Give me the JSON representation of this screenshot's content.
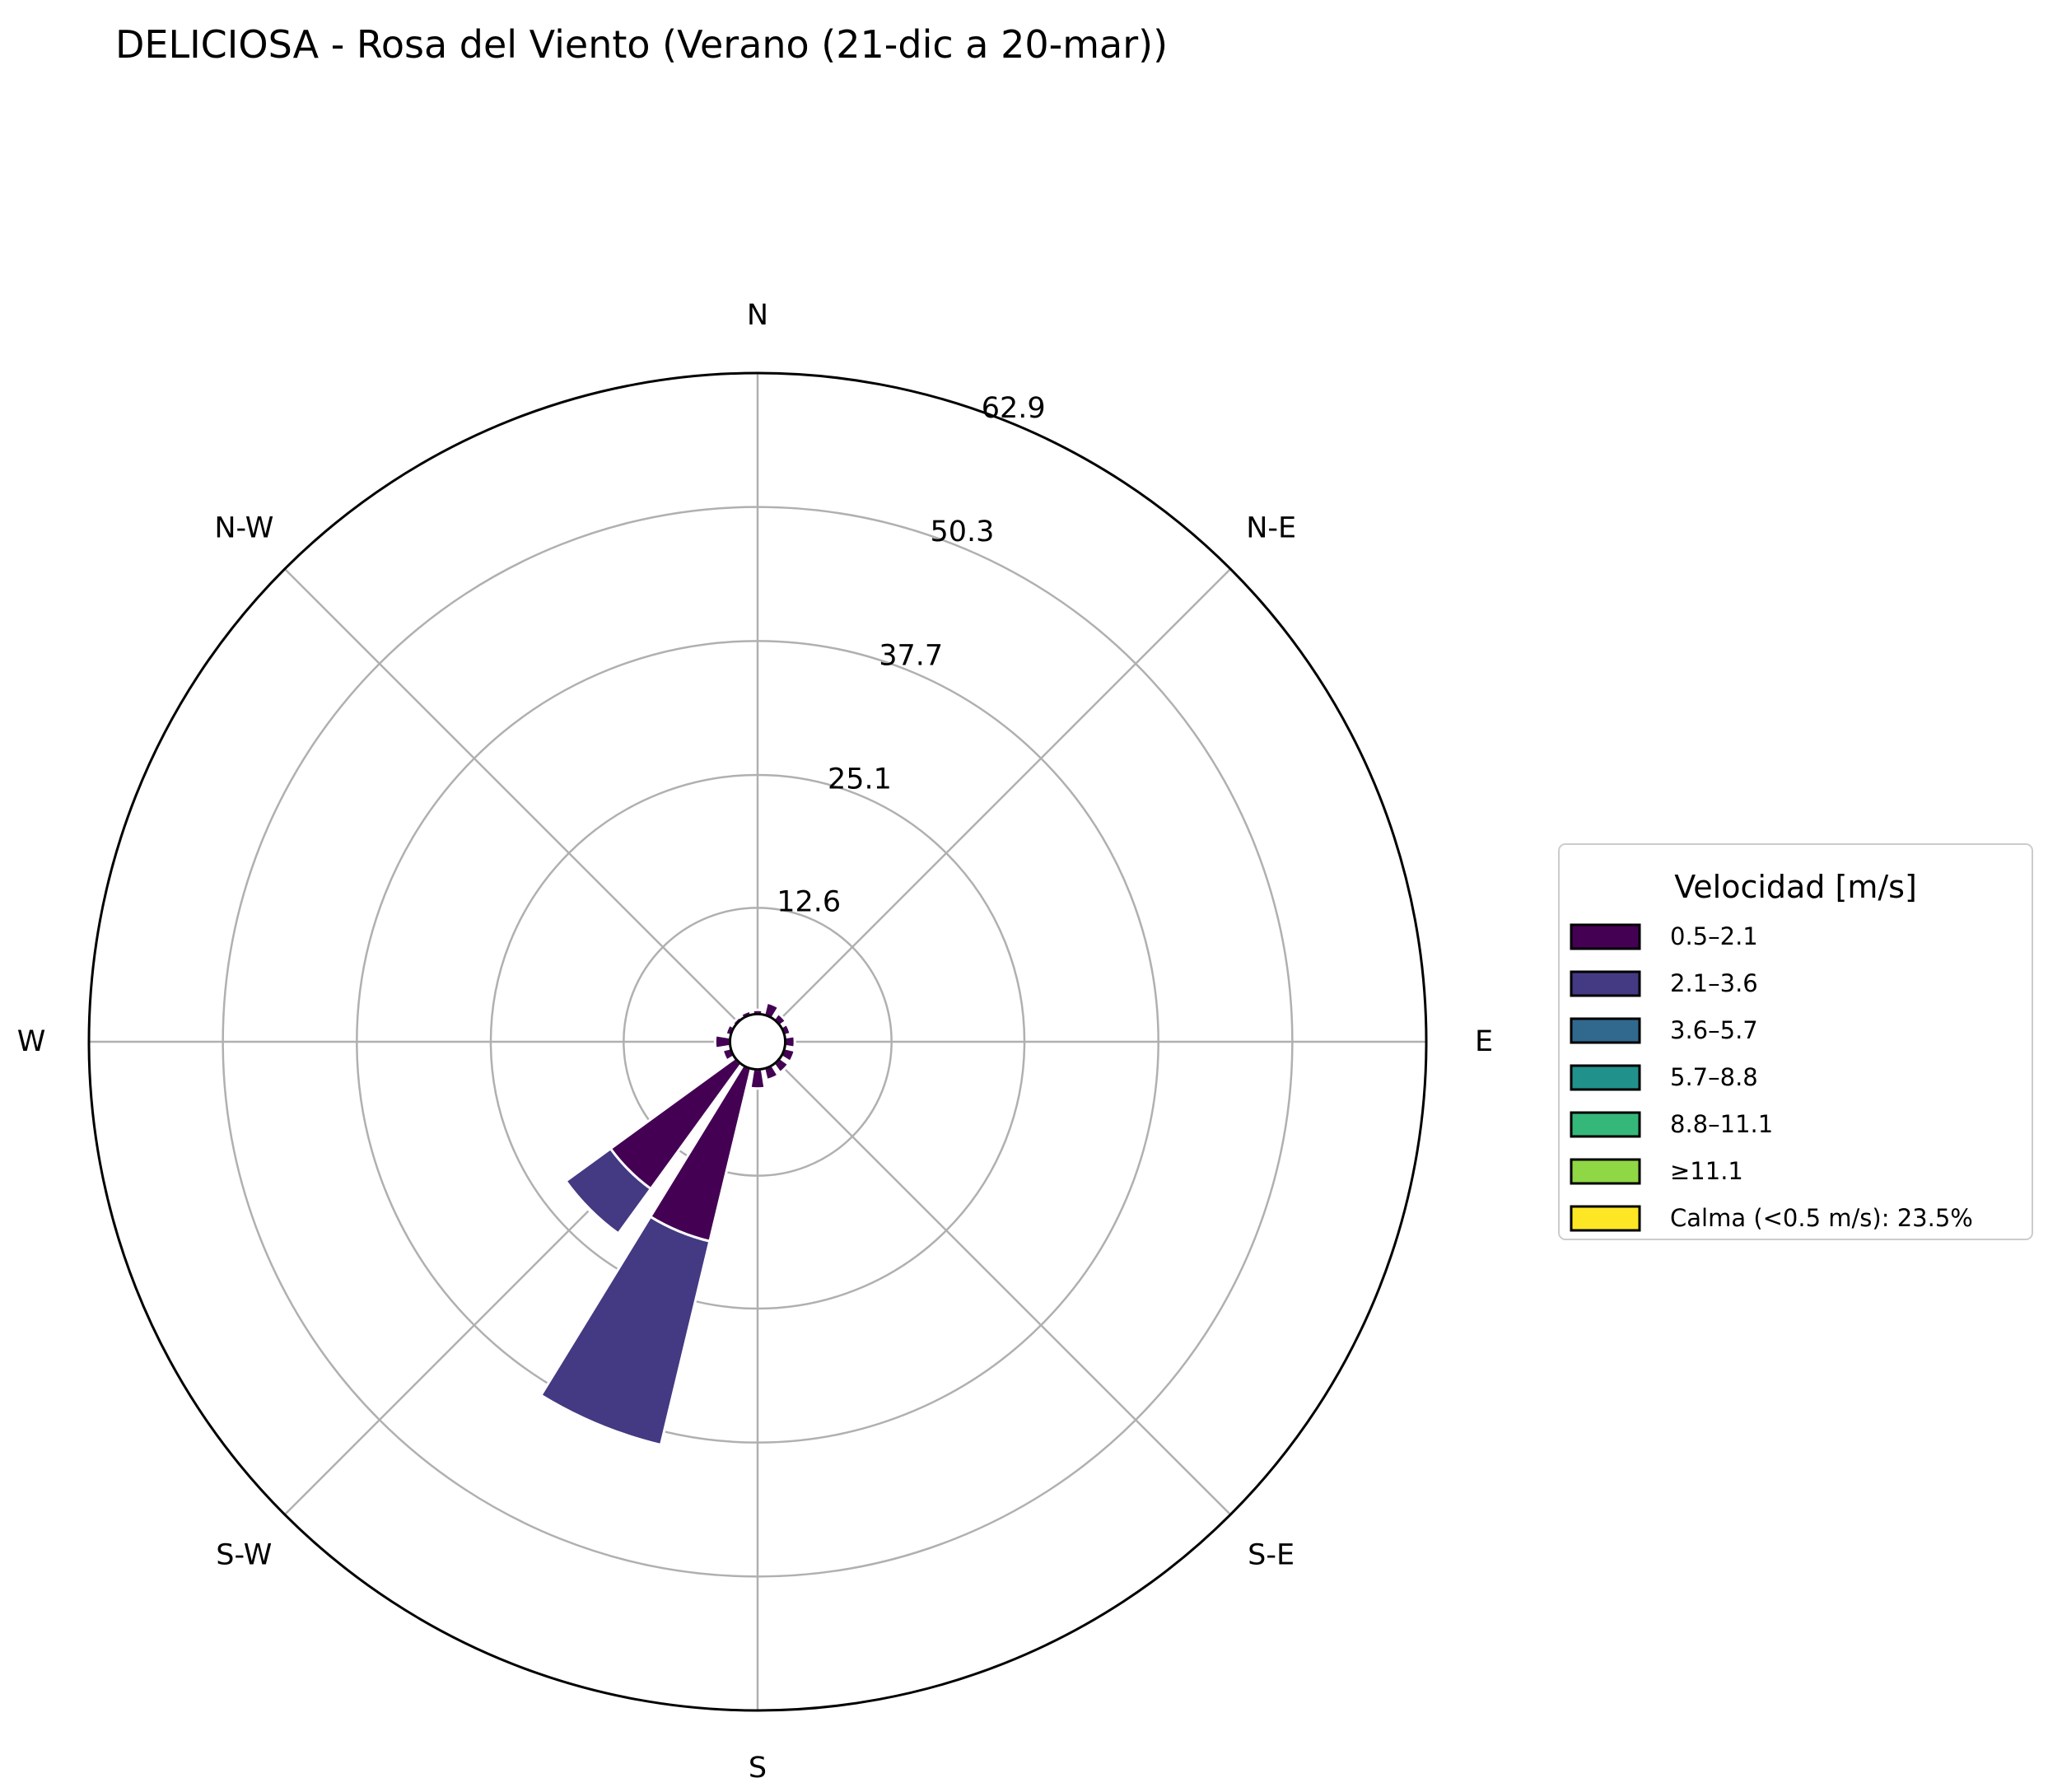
{
  "chart_data": {
    "type": "windrose",
    "title": "DELICIOSA - Rosa del Viento (Verano (21-dic a 20-mar))",
    "direction_labels": [
      {
        "angle": 0,
        "label": "N"
      },
      {
        "angle": 45,
        "label": "N-E"
      },
      {
        "angle": 90,
        "label": "E"
      },
      {
        "angle": 135,
        "label": "S-E"
      },
      {
        "angle": 180,
        "label": "S"
      },
      {
        "angle": 225,
        "label": "S-W"
      },
      {
        "angle": 270,
        "label": "W"
      },
      {
        "angle": 315,
        "label": "N-W"
      }
    ],
    "radial_ticks": [
      "12.6",
      "25.1",
      "37.7",
      "50.3",
      "62.9"
    ],
    "radial_tick_values": [
      12.6,
      25.1,
      37.7,
      50.3,
      62.9
    ],
    "rmax": 62.9,
    "calm_hole_radius": 2.6,
    "sector_width_deg": 22.5,
    "directions_deg": [
      0,
      22.5,
      45,
      67.5,
      90,
      112.5,
      135,
      157.5,
      180,
      202.5,
      225,
      247.5,
      270,
      292.5,
      315,
      337.5
    ],
    "series": [
      {
        "name": "0.5–2.1",
        "color": "#440154",
        "values": [
          0.4,
          1.2,
          0.7,
          0.6,
          0.9,
          1.0,
          1.0,
          1.1,
          1.8,
          16.7,
          14.5,
          0.8,
          1.4,
          0.5,
          0.3,
          0.4
        ]
      },
      {
        "name": "2.1–3.6",
        "color": "#443983",
        "values": [
          0,
          0,
          0,
          0,
          0,
          0,
          0,
          0,
          0,
          19.7,
          5.2,
          0,
          0,
          0,
          0,
          0
        ]
      },
      {
        "name": "3.6–5.7",
        "color": "#31688e",
        "values": [
          0,
          0,
          0,
          0,
          0,
          0,
          0,
          0,
          0,
          0.2,
          0.1,
          0,
          0,
          0,
          0,
          0
        ]
      },
      {
        "name": "5.7–8.8",
        "color": "#21918c",
        "values": [
          0,
          0,
          0,
          0,
          0,
          0,
          0,
          0,
          0,
          0,
          0,
          0,
          0,
          0,
          0,
          0
        ]
      },
      {
        "name": "8.8–11.1",
        "color": "#35b779",
        "values": [
          0,
          0,
          0,
          0,
          0,
          0,
          0,
          0,
          0,
          0,
          0,
          0,
          0,
          0,
          0,
          0
        ]
      },
      {
        "name": "≥11.1",
        "color": "#8fd744",
        "values": [
          0,
          0,
          0,
          0,
          0,
          0,
          0,
          0,
          0,
          0,
          0,
          0,
          0,
          0,
          0,
          0
        ]
      }
    ],
    "legend": {
      "title": "Velocidad [m/s]",
      "placement": "right",
      "entries": [
        {
          "label": "0.5–2.1",
          "color": "#440154"
        },
        {
          "label": "2.1–3.6",
          "color": "#443983"
        },
        {
          "label": "3.6–5.7",
          "color": "#31688e"
        },
        {
          "label": "5.7–8.8",
          "color": "#21918c"
        },
        {
          "label": "8.8–11.1",
          "color": "#35b779"
        },
        {
          "label": "≥11.1",
          "color": "#8fd744"
        },
        {
          "label": "Calma (<0.5 m/s): 23.5%",
          "color": "#fde725"
        }
      ]
    },
    "grid": true
  }
}
